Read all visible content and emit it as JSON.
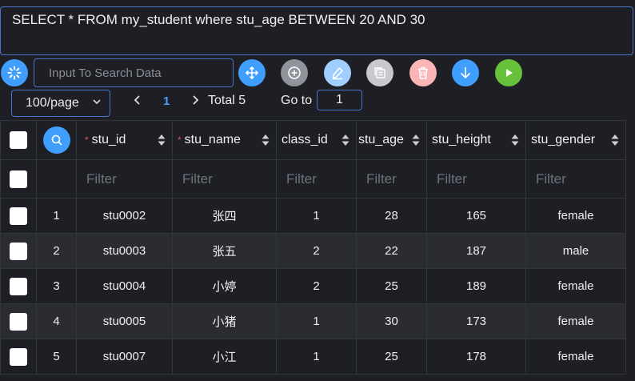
{
  "sql": "SELECT * FROM my_student where stu_age BETWEEN 20 AND 30",
  "search": {
    "placeholder": "Input To Search Data"
  },
  "toolbar": [
    {
      "name": "spinner-button",
      "icon": "loading-icon",
      "color": "#409eff"
    },
    {
      "name": "move-button",
      "icon": "move-icon",
      "color": "#409eff"
    },
    {
      "name": "add-button",
      "icon": "plus-circle-icon",
      "color": "#909399"
    },
    {
      "name": "edit-button",
      "icon": "edit-icon",
      "color": "#a0cfff"
    },
    {
      "name": "copy-button",
      "icon": "copy-icon",
      "color": "#c8c9cc"
    },
    {
      "name": "delete-button",
      "icon": "trash-icon",
      "color": "#fab6b6"
    },
    {
      "name": "download-button",
      "icon": "arrow-down-icon",
      "color": "#409eff"
    },
    {
      "name": "run-button",
      "icon": "play-icon",
      "color": "#67c23a"
    }
  ],
  "pager": {
    "page_size": "100/page",
    "current_page": "1",
    "total": "Total 5",
    "goto_label": "Go to",
    "goto_value": "1"
  },
  "table": {
    "filter_placeholder": "Filter",
    "columns": [
      {
        "key": "stu_id",
        "label": "stu_id",
        "required": true
      },
      {
        "key": "stu_name",
        "label": "stu_name",
        "required": true
      },
      {
        "key": "class_id",
        "label": "class_id",
        "required": false
      },
      {
        "key": "stu_age",
        "label": "stu_age",
        "required": false
      },
      {
        "key": "stu_height",
        "label": "stu_height",
        "required": false
      },
      {
        "key": "stu_gender",
        "label": "stu_gender",
        "required": false
      }
    ],
    "rows": [
      {
        "num": "1",
        "stu_id": "stu0002",
        "stu_name": "张四",
        "class_id": "1",
        "stu_age": "28",
        "stu_height": "165",
        "stu_gender": "female"
      },
      {
        "num": "2",
        "stu_id": "stu0003",
        "stu_name": "张五",
        "class_id": "2",
        "stu_age": "22",
        "stu_height": "187",
        "stu_gender": "male"
      },
      {
        "num": "3",
        "stu_id": "stu0004",
        "stu_name": "小婷",
        "class_id": "2",
        "stu_age": "25",
        "stu_height": "189",
        "stu_gender": "female"
      },
      {
        "num": "4",
        "stu_id": "stu0005",
        "stu_name": "小猪",
        "class_id": "1",
        "stu_age": "30",
        "stu_height": "173",
        "stu_gender": "female"
      },
      {
        "num": "5",
        "stu_id": "stu0007",
        "stu_name": "小江",
        "class_id": "1",
        "stu_age": "25",
        "stu_height": "178",
        "stu_gender": "female"
      }
    ]
  }
}
